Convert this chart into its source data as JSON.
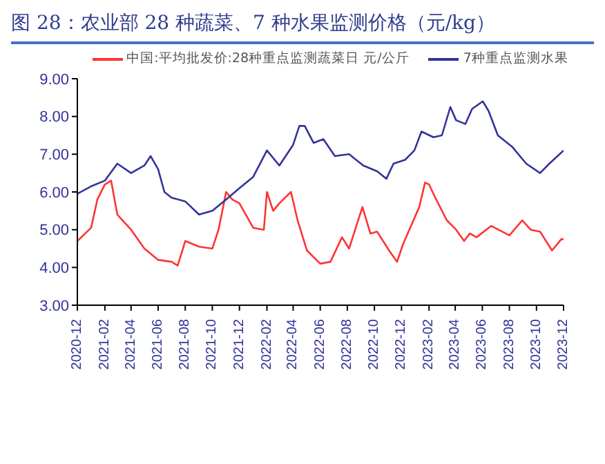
{
  "chart_data": {
    "type": "line",
    "title": "图 28：农业部 28 种蔬菜、7 种水果监测价格（元/kg）",
    "legend": "top",
    "marker": "none",
    "line_style": "solid",
    "xlim": [
      "2020-12",
      "2023-12"
    ],
    "xticks": [
      "2020-12",
      "2021-02",
      "2021-04",
      "2021-06",
      "2021-08",
      "2021-10",
      "2021-12",
      "2022-02",
      "2022-04",
      "2022-06",
      "2022-08",
      "2022-10",
      "2022-12",
      "2023-02",
      "2023-04",
      "2023-06",
      "2023-08",
      "2023-10",
      "2023-12"
    ],
    "ylim": [
      3,
      9
    ],
    "yticks": [
      {
        "value": 3,
        "label": "3.00"
      },
      {
        "value": 4,
        "label": "4.00"
      },
      {
        "value": 5,
        "label": "5.00"
      },
      {
        "value": 6,
        "label": "6.00"
      },
      {
        "value": 7,
        "label": "7.00"
      },
      {
        "value": 8,
        "label": "8.00"
      },
      {
        "value": 9,
        "label": "9.00"
      }
    ],
    "series": [
      {
        "name": "中国:平均批发价:28种重点监测蔬菜日 元/公斤",
        "color": "#ff3333",
        "x": [
          "2020-12-01",
          "2021-01-01",
          "2021-01-15",
          "2021-02-01",
          "2021-02-15",
          "2021-03-01",
          "2021-04-01",
          "2021-05-01",
          "2021-06-01",
          "2021-07-01",
          "2021-07-15",
          "2021-08-01",
          "2021-09-01",
          "2021-10-01",
          "2021-10-15",
          "2021-11-01",
          "2021-11-15",
          "2021-12-01",
          "2022-01-01",
          "2022-01-25",
          "2022-02-01",
          "2022-02-15",
          "2022-03-01",
          "2022-03-27",
          "2022-04-11",
          "2022-05-02",
          "2022-06-01",
          "2022-06-24",
          "2022-07-20",
          "2022-08-05",
          "2022-09-04",
          "2022-09-22",
          "2022-10-07",
          "2022-11-03",
          "2022-11-21",
          "2022-12-04",
          "2023-01-10",
          "2023-01-23",
          "2023-02-01",
          "2023-02-15",
          "2023-03-13",
          "2023-04-03",
          "2023-04-21",
          "2023-05-04",
          "2023-05-19",
          "2023-06-21",
          "2023-08-01",
          "2023-08-30",
          "2023-09-18",
          "2023-10-09",
          "2023-11-05",
          "2023-11-26",
          "2023-12-01"
        ],
        "values": [
          4.7,
          5.05,
          5.8,
          6.2,
          6.3,
          5.4,
          5.0,
          4.5,
          4.2,
          4.15,
          4.05,
          4.7,
          4.55,
          4.5,
          5.0,
          6.0,
          5.8,
          5.7,
          5.05,
          5.0,
          6.0,
          5.5,
          5.7,
          6.0,
          5.25,
          4.45,
          4.1,
          4.15,
          4.8,
          4.5,
          5.6,
          4.9,
          4.95,
          4.45,
          4.15,
          4.6,
          5.6,
          6.25,
          6.2,
          5.85,
          5.25,
          5.0,
          4.7,
          4.9,
          4.8,
          5.1,
          4.85,
          5.25,
          5.0,
          4.95,
          4.45,
          4.75,
          4.75
        ]
      },
      {
        "name": "7种重点监测水果",
        "color": "#333399",
        "x": [
          "2020-12-01",
          "2021-01-01",
          "2021-02-01",
          "2021-03-01",
          "2021-04-01",
          "2021-05-01",
          "2021-05-15",
          "2021-06-01",
          "2021-06-15",
          "2021-07-01",
          "2021-08-01",
          "2021-09-01",
          "2021-10-01",
          "2021-11-01",
          "2021-12-01",
          "2022-01-01",
          "2022-02-01",
          "2022-03-01",
          "2022-04-01",
          "2022-04-15",
          "2022-04-27",
          "2022-05-17",
          "2022-06-08",
          "2022-07-04",
          "2022-08-05",
          "2022-09-06",
          "2022-10-07",
          "2022-10-28",
          "2022-11-13",
          "2022-12-09",
          "2022-12-30",
          "2023-01-15",
          "2023-02-11",
          "2023-03-02",
          "2023-03-21",
          "2023-04-03",
          "2023-04-24",
          "2023-05-09",
          "2023-06-02",
          "2023-06-15",
          "2023-07-06",
          "2023-08-07",
          "2023-09-08",
          "2023-10-09",
          "2023-10-30",
          "2023-12-01"
        ],
        "values": [
          5.95,
          6.15,
          6.3,
          6.75,
          6.5,
          6.7,
          6.95,
          6.6,
          6.0,
          5.85,
          5.75,
          5.4,
          5.5,
          5.8,
          6.1,
          6.4,
          7.1,
          6.7,
          7.25,
          7.75,
          7.75,
          7.3,
          7.4,
          6.95,
          7.0,
          6.7,
          6.55,
          6.35,
          6.75,
          6.85,
          7.1,
          7.6,
          7.45,
          7.5,
          8.25,
          7.9,
          7.8,
          8.2,
          8.4,
          8.15,
          7.5,
          7.2,
          6.75,
          6.5,
          6.75,
          7.1
        ]
      }
    ]
  }
}
